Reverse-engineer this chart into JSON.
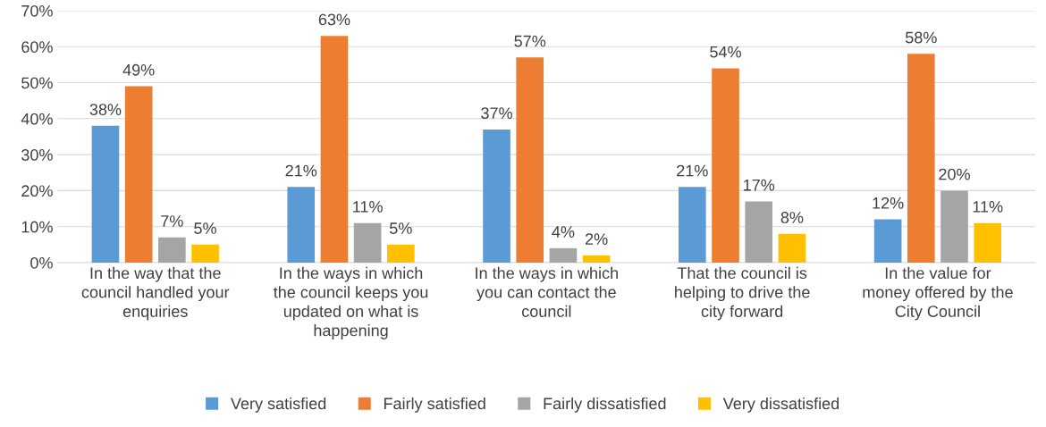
{
  "chart_data": {
    "type": "bar",
    "categories": [
      "In the way that the\ncouncil handled your\nenquiries",
      "In the ways in which\nthe council keeps you\nupdated on what is\nhappening",
      "In the ways in which\nyou can contact the\ncouncil",
      "That the council is\nhelping to drive the\ncity forward",
      "In the value for\nmoney offered by the\nCity Council"
    ],
    "series": [
      {
        "name": "Very satisfied",
        "color": "#5b9bd5",
        "values": [
          38,
          21,
          37,
          21,
          12
        ],
        "value_labels": [
          "38%",
          "21%",
          "37%",
          "21%",
          "12%"
        ]
      },
      {
        "name": "Fairly satisfied",
        "color": "#ed7d31",
        "values": [
          49,
          63,
          57,
          54,
          58
        ],
        "value_labels": [
          "49%",
          "63%",
          "57%",
          "54%",
          "58%"
        ]
      },
      {
        "name": "Fairly dissatisfied",
        "color": "#a5a5a5",
        "values": [
          7,
          11,
          4,
          17,
          20
        ],
        "value_labels": [
          "7%",
          "11%",
          "4%",
          "17%",
          "20%"
        ]
      },
      {
        "name": "Very dissatisfied",
        "color": "#ffc000",
        "values": [
          5,
          5,
          2,
          8,
          11
        ],
        "value_labels": [
          "5%",
          "5%",
          "2%",
          "8%",
          "11%"
        ]
      }
    ],
    "ylim": [
      0,
      70
    ],
    "yticks": [
      {
        "value": 0,
        "label": "0%"
      },
      {
        "value": 10,
        "label": "10%"
      },
      {
        "value": 20,
        "label": "20%"
      },
      {
        "value": 30,
        "label": "30%"
      },
      {
        "value": 40,
        "label": "40%"
      },
      {
        "value": 50,
        "label": "50%"
      },
      {
        "value": 60,
        "label": "60%"
      },
      {
        "value": 70,
        "label": "70%"
      }
    ],
    "grid": "y",
    "legend": "bottom"
  }
}
